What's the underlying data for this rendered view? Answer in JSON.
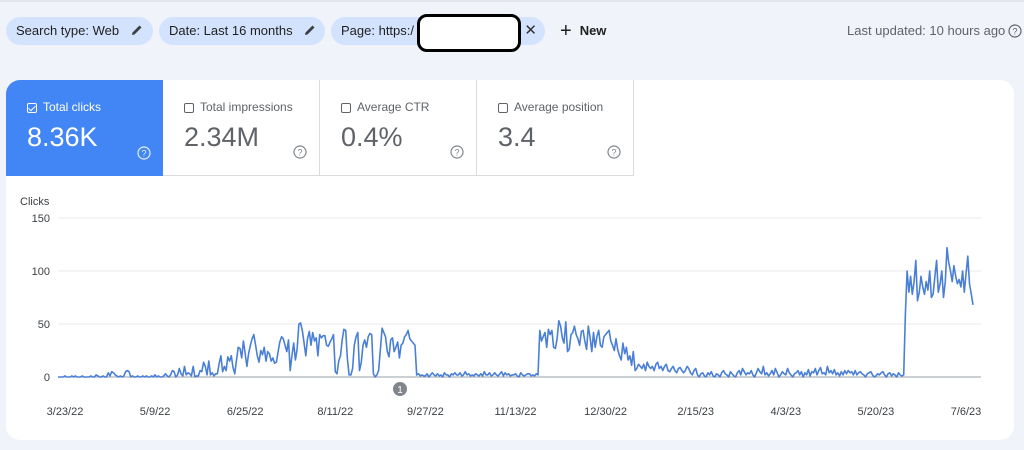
{
  "filters": {
    "search_type": "Search type: Web",
    "date": "Date: Last 16 months",
    "page": "Page: https:/",
    "new_label": "New"
  },
  "last_updated": "Last updated: 10 hours ago",
  "metrics": [
    {
      "label": "Total clicks",
      "value": "8.36K",
      "checked": true
    },
    {
      "label": "Total impressions",
      "value": "2.34M",
      "checked": false
    },
    {
      "label": "Average CTR",
      "value": "0.4%",
      "checked": false
    },
    {
      "label": "Average position",
      "value": "3.4",
      "checked": false
    }
  ],
  "colors": {
    "accent": "#4285f4",
    "chip": "#d3e3fd",
    "line": "#4a7fd6"
  },
  "chart_data": {
    "type": "line",
    "ylabel": "Clicks",
    "ylim": [
      0,
      150
    ],
    "yticks": [
      "150",
      "100",
      "50",
      "0"
    ],
    "xticks": [
      "3/23/22",
      "5/9/22",
      "6/25/22",
      "8/11/22",
      "9/27/22",
      "11/13/22",
      "12/30/22",
      "2/15/23",
      "4/3/23",
      "5/20/23",
      "7/6/23"
    ],
    "annotation": "1",
    "grid": true,
    "series": [
      {
        "values": [
          0,
          0,
          0,
          0,
          1,
          0,
          0,
          0,
          1,
          0,
          1,
          0,
          0,
          0,
          1,
          0,
          0,
          0,
          0,
          1,
          0,
          0,
          2,
          1,
          0,
          0,
          1,
          0,
          0,
          4,
          1,
          5,
          4,
          2,
          1,
          0,
          1,
          0,
          1,
          5,
          6,
          5,
          0,
          1,
          0,
          0,
          1,
          0,
          0,
          1,
          0,
          1,
          0,
          0,
          1,
          0,
          2,
          0,
          1,
          0,
          0,
          1,
          3,
          1,
          0,
          2,
          6,
          5,
          0,
          2,
          8,
          3,
          1,
          10,
          2,
          4,
          3,
          1,
          10,
          0,
          1,
          1,
          6,
          5,
          14,
          10,
          2,
          15,
          2,
          4,
          1,
          3,
          3,
          13,
          20,
          5,
          10,
          6,
          19,
          15,
          20,
          9,
          3,
          16,
          28,
          27,
          18,
          34,
          22,
          10,
          22,
          30,
          36,
          40,
          30,
          20,
          14,
          25,
          21,
          28,
          15,
          24,
          22,
          15,
          18,
          13,
          14,
          24,
          33,
          38,
          36,
          30,
          24,
          35,
          6,
          20,
          32,
          16,
          26,
          50,
          51,
          44,
          32,
          20,
          36,
          43,
          30,
          42,
          34,
          37,
          20,
          40,
          37,
          39,
          39,
          30,
          29,
          33,
          36,
          40,
          5,
          3,
          15,
          20,
          35,
          45,
          44,
          17,
          2,
          2,
          8,
          30,
          38,
          42,
          6,
          14,
          30,
          35,
          28,
          38,
          41,
          40,
          3,
          0,
          2,
          6,
          25,
          46,
          42,
          38,
          24,
          19,
          35,
          37,
          24,
          28,
          33,
          18,
          30,
          32,
          38,
          40,
          44,
          36,
          34,
          32,
          30,
          2,
          3,
          1,
          2,
          1,
          1,
          3,
          0,
          2,
          4,
          2,
          1,
          3,
          1,
          2,
          0,
          4,
          2,
          2,
          0,
          3,
          2,
          4,
          2,
          2,
          4,
          1,
          2,
          5,
          2,
          3,
          1,
          2,
          1,
          3,
          2,
          1,
          3,
          1,
          5,
          2,
          2,
          4,
          1,
          2,
          4,
          2,
          1,
          3,
          5,
          1,
          4,
          2,
          3,
          1,
          2,
          2,
          3,
          1,
          0,
          4,
          2,
          1,
          2,
          3,
          3,
          1,
          2,
          1,
          3,
          2,
          44,
          34,
          38,
          42,
          28,
          45,
          40,
          44,
          28,
          27,
          36,
          53,
          48,
          37,
          32,
          52,
          24,
          26,
          40,
          42,
          48,
          40,
          36,
          30,
          43,
          44,
          34,
          26,
          48,
          38,
          24,
          42,
          28,
          38,
          44,
          30,
          28,
          38,
          40,
          42,
          44,
          34,
          30,
          25,
          36,
          26,
          20,
          16,
          32,
          22,
          28,
          16,
          20,
          11,
          24,
          6,
          8,
          12,
          10,
          8,
          12,
          6,
          14,
          10,
          8,
          10,
          6,
          12,
          14,
          8,
          10,
          6,
          10,
          12,
          6,
          5,
          8,
          10,
          6,
          4,
          8,
          9,
          6,
          4,
          6,
          10,
          8,
          4,
          2,
          6,
          8,
          2,
          0,
          3,
          4,
          1,
          0,
          4,
          2,
          5,
          1,
          0,
          3,
          2,
          0,
          4,
          6,
          3,
          2,
          0,
          5,
          3,
          1,
          0,
          4,
          6,
          2,
          8,
          5,
          2,
          4,
          3,
          6,
          2,
          0,
          4,
          8,
          5,
          3,
          10,
          2,
          4,
          1,
          3,
          6,
          2,
          8,
          4,
          0,
          2,
          5,
          3,
          2,
          8,
          4,
          2,
          0,
          3,
          4,
          6,
          2,
          5,
          0,
          4,
          2,
          7,
          1,
          5,
          4,
          8,
          2,
          6,
          9,
          3,
          4,
          2,
          10,
          4,
          6,
          3,
          7,
          2,
          4,
          1,
          5,
          2,
          6,
          3,
          6,
          4,
          5,
          2,
          6,
          2,
          4,
          5,
          3,
          2,
          0,
          3,
          4,
          5,
          2,
          0,
          1,
          3,
          2,
          4,
          5,
          2,
          0,
          3,
          4,
          1,
          3,
          2,
          0,
          4,
          2,
          1,
          2,
          60,
          100,
          80,
          95,
          78,
          90,
          110,
          72,
          80,
          95,
          85,
          78,
          90,
          82,
          100,
          75,
          78,
          95,
          110,
          80,
          88,
          100,
          75,
          90,
          122,
          108,
          100,
          90,
          105,
          95,
          88,
          92,
          85,
          100,
          80,
          98,
          114,
          88,
          78,
          68
        ]
      }
    ]
  }
}
